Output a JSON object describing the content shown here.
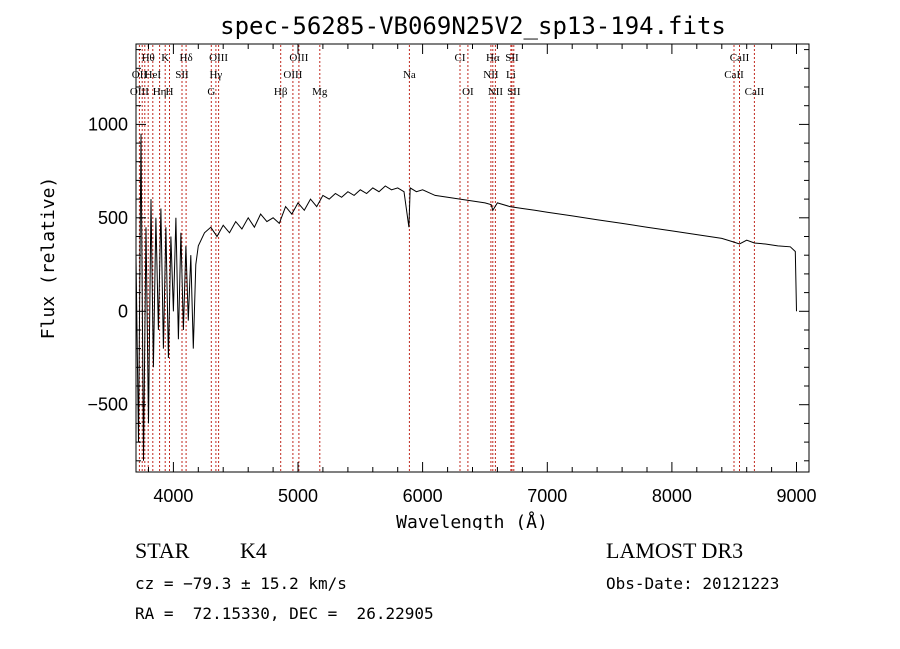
{
  "chart_data": {
    "type": "line",
    "title": "spec-56285-VB069N25V2_sp13-194.fits",
    "xlabel": "Wavelength (Å)",
    "ylabel": "Flux (relative)",
    "xlim": [
      3700,
      9100
    ],
    "ylim": [
      -860,
      1430
    ],
    "xticks": [
      4000,
      5000,
      6000,
      7000,
      8000,
      9000
    ],
    "yticks": [
      -500,
      0,
      500,
      1000
    ],
    "xtick_labels": [
      "4000",
      "5000",
      "6000",
      "7000",
      "8000",
      "9000"
    ],
    "ytick_labels": [
      "−500",
      "0",
      "500",
      "1000"
    ],
    "series": [
      {
        "name": "spectrum",
        "x": [
          3700,
          3720,
          3740,
          3760,
          3780,
          3800,
          3820,
          3840,
          3860,
          3880,
          3900,
          3920,
          3940,
          3960,
          3980,
          4000,
          4020,
          4040,
          4060,
          4080,
          4100,
          4120,
          4140,
          4160,
          4180,
          4200,
          4250,
          4300,
          4350,
          4400,
          4450,
          4500,
          4550,
          4600,
          4650,
          4700,
          4750,
          4800,
          4850,
          4900,
          4950,
          5000,
          5050,
          5100,
          5150,
          5200,
          5250,
          5300,
          5350,
          5400,
          5450,
          5500,
          5550,
          5600,
          5650,
          5700,
          5750,
          5800,
          5850,
          5890,
          5900,
          5950,
          6000,
          6100,
          6200,
          6300,
          6400,
          6500,
          6550,
          6563,
          6600,
          6700,
          6800,
          6900,
          7000,
          7200,
          7400,
          7600,
          7800,
          8000,
          8200,
          8400,
          8498,
          8542,
          8600,
          8662,
          8750,
          8850,
          8950,
          8990,
          9000
        ],
        "y": [
          300,
          -700,
          950,
          -800,
          450,
          -600,
          600,
          -300,
          500,
          -100,
          550,
          -200,
          450,
          -250,
          400,
          0,
          500,
          -150,
          420,
          -100,
          350,
          -50,
          300,
          -200,
          250,
          350,
          420,
          450,
          400,
          460,
          420,
          480,
          440,
          500,
          450,
          520,
          480,
          500,
          470,
          560,
          520,
          580,
          540,
          600,
          560,
          620,
          600,
          630,
          610,
          640,
          620,
          650,
          630,
          660,
          640,
          670,
          650,
          660,
          640,
          450,
          660,
          640,
          650,
          620,
          610,
          600,
          590,
          580,
          570,
          540,
          580,
          560,
          550,
          540,
          530,
          510,
          490,
          470,
          450,
          430,
          410,
          390,
          370,
          360,
          380,
          365,
          360,
          350,
          345,
          320,
          0
        ]
      }
    ],
    "line_labels": [
      {
        "name": "OII",
        "wave": 3727,
        "row": 1
      },
      {
        "name": "OIII",
        "wave": 3727,
        "row": 2
      },
      {
        "name": "Hθ",
        "wave": 3798,
        "row": 0
      },
      {
        "name": "HeI",
        "wave": 3835,
        "row": 1
      },
      {
        "name": "Hη",
        "wave": 3889,
        "row": 2
      },
      {
        "name": "K",
        "wave": 3934,
        "row": 0
      },
      {
        "name": "SII",
        "wave": 4069,
        "row": 1
      },
      {
        "name": "H",
        "wave": 3969,
        "row": 2
      },
      {
        "name": "Hδ",
        "wave": 4102,
        "row": 0
      },
      {
        "name": "OIII",
        "wave": 4363,
        "row": 0
      },
      {
        "name": "Hγ",
        "wave": 4341,
        "row": 1
      },
      {
        "name": "G",
        "wave": 4304,
        "row": 2
      },
      {
        "name": "Hβ",
        "wave": 4861,
        "row": 2
      },
      {
        "name": "OIII",
        "wave": 5007,
        "row": 0
      },
      {
        "name": "OIII",
        "wave": 4959,
        "row": 1
      },
      {
        "name": "Mg",
        "wave": 5175,
        "row": 2
      },
      {
        "name": "Na",
        "wave": 5894,
        "row": 1
      },
      {
        "name": "CI",
        "wave": 6300,
        "row": 0
      },
      {
        "name": "OI",
        "wave": 6363,
        "row": 2
      },
      {
        "name": "Hα",
        "wave": 6563,
        "row": 0
      },
      {
        "name": "NII",
        "wave": 6548,
        "row": 1
      },
      {
        "name": "NII",
        "wave": 6584,
        "row": 2
      },
      {
        "name": "SII",
        "wave": 6717,
        "row": 0
      },
      {
        "name": "Li",
        "wave": 6708,
        "row": 1
      },
      {
        "name": "SII",
        "wave": 6731,
        "row": 2
      },
      {
        "name": "CaII",
        "wave": 8542,
        "row": 0
      },
      {
        "name": "CaII",
        "wave": 8498,
        "row": 1
      },
      {
        "name": "CaII",
        "wave": 8662,
        "row": 2
      }
    ],
    "marker_lines": [
      3727,
      3750,
      3771,
      3798,
      3835,
      3889,
      3934,
      3969,
      4069,
      4102,
      4304,
      4341,
      4363,
      4861,
      4959,
      5007,
      5175,
      5894,
      6300,
      6363,
      6548,
      6563,
      6584,
      6708,
      6717,
      6731,
      8498,
      8542,
      8662
    ]
  },
  "info": {
    "object_class": "STAR",
    "subclass": "K4",
    "survey": "LAMOST DR3",
    "redshift": "cz = −79.3 ± 15.2 km/s",
    "obs_date": "Obs-Date: 20121223",
    "coordinates": "RA =  72.15330, DEC =  26.22905"
  },
  "colors": {
    "axis": "#000000",
    "spectrum": "#000000",
    "marker": "#c0281e"
  }
}
